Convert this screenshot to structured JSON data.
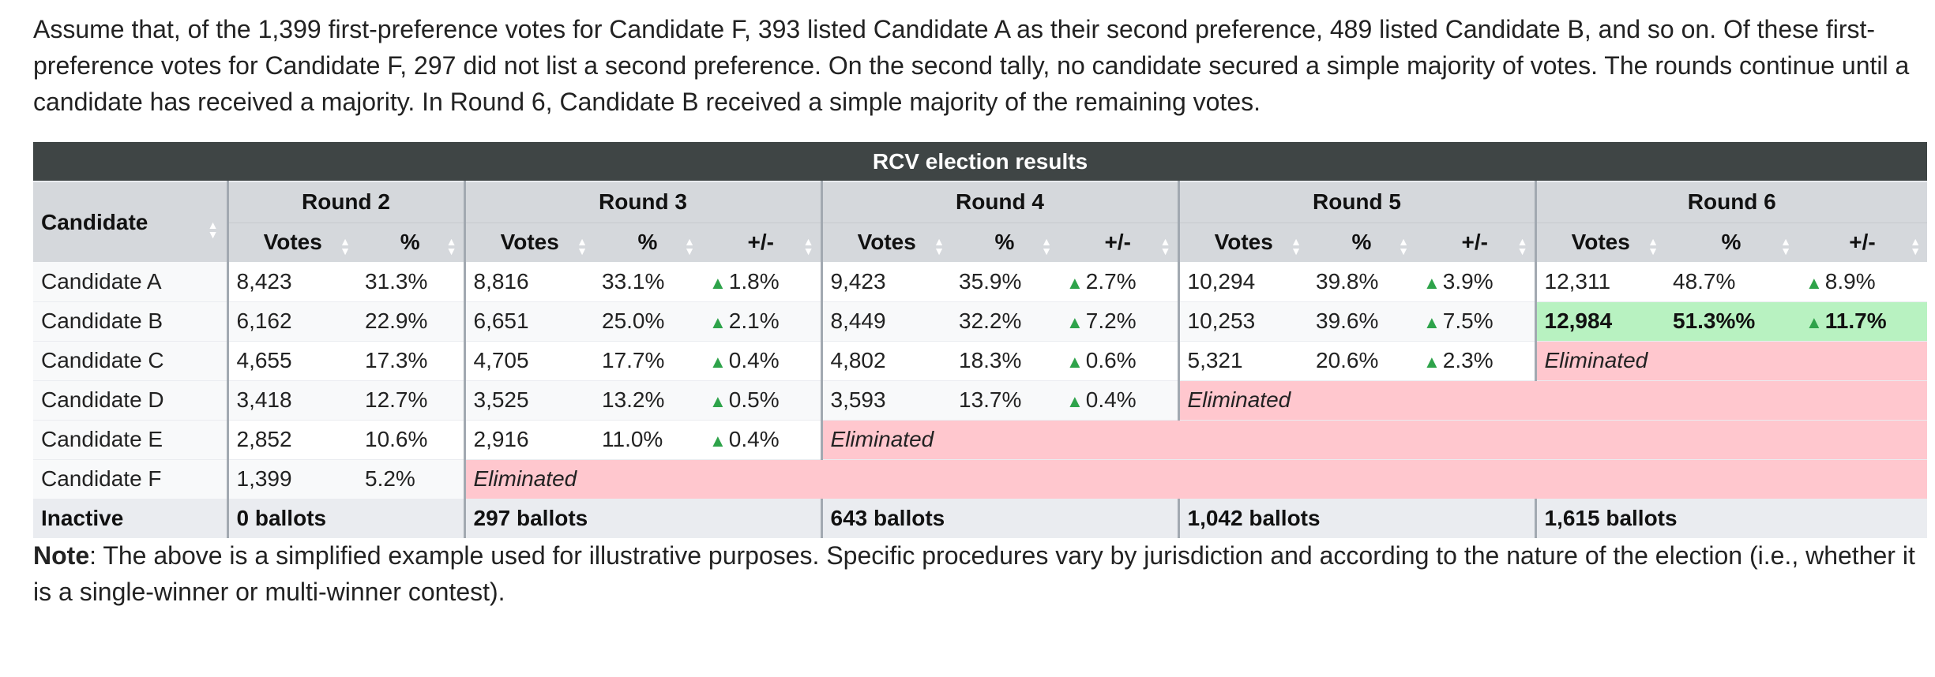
{
  "intro_text": "Assume that, of the 1,399 first-preference votes for Candidate F, 393 listed Candidate A as their second preference, 489 listed Candidate B, and so on. Of these first-preference votes for Candidate F, 297 did not list a second preference. On the second tally, no candidate secured a simple majority of votes. The rounds continue until a candidate has received a majority. In Round 6, Candidate B received a simple majority of the remaining votes.",
  "table": {
    "caption": "RCV election results",
    "candidate_header": "Candidate",
    "rounds": [
      "Round 2",
      "Round 3",
      "Round 4",
      "Round 5",
      "Round 6"
    ],
    "sub_headers": {
      "votes": "Votes",
      "pct": "%",
      "change": "+/-"
    },
    "eliminated_label": "Eliminated",
    "rows": [
      {
        "name": "Candidate A",
        "r2": {
          "votes": "8,423",
          "pct": "31.3%"
        },
        "r3": {
          "votes": "8,816",
          "pct": "33.1%",
          "change": "1.8%"
        },
        "r4": {
          "votes": "9,423",
          "pct": "35.9%",
          "change": "2.7%"
        },
        "r5": {
          "votes": "10,294",
          "pct": "39.8%",
          "change": "3.9%"
        },
        "r6": {
          "votes": "12,311",
          "pct": "48.7%",
          "change": "8.9%"
        }
      },
      {
        "name": "Candidate B",
        "r2": {
          "votes": "6,162",
          "pct": "22.9%"
        },
        "r3": {
          "votes": "6,651",
          "pct": "25.0%",
          "change": "2.1%"
        },
        "r4": {
          "votes": "8,449",
          "pct": "32.2%",
          "change": "7.2%"
        },
        "r5": {
          "votes": "10,253",
          "pct": "39.6%",
          "change": "7.5%"
        },
        "r6": {
          "votes": "12,984",
          "pct": "51.3%%",
          "change": "11.7%"
        }
      },
      {
        "name": "Candidate C",
        "r2": {
          "votes": "4,655",
          "pct": "17.3%"
        },
        "r3": {
          "votes": "4,705",
          "pct": "17.7%",
          "change": "0.4%"
        },
        "r4": {
          "votes": "4,802",
          "pct": "18.3%",
          "change": "0.6%"
        },
        "r5": {
          "votes": "5,321",
          "pct": "20.6%",
          "change": "2.3%"
        }
      },
      {
        "name": "Candidate D",
        "r2": {
          "votes": "3,418",
          "pct": "12.7%"
        },
        "r3": {
          "votes": "3,525",
          "pct": "13.2%",
          "change": "0.5%"
        },
        "r4": {
          "votes": "3,593",
          "pct": "13.7%",
          "change": "0.4%"
        }
      },
      {
        "name": "Candidate E",
        "r2": {
          "votes": "2,852",
          "pct": "10.6%"
        },
        "r3": {
          "votes": "2,916",
          "pct": "11.0%",
          "change": "0.4%"
        }
      },
      {
        "name": "Candidate F",
        "r2": {
          "votes": "1,399",
          "pct": "5.2%"
        }
      }
    ],
    "inactive": {
      "label": "Inactive",
      "values": [
        "0 ballots",
        "297 ballots",
        "643 ballots",
        "1,042 ballots",
        "1,615 ballots"
      ]
    }
  },
  "note": {
    "label": "Note",
    "text": ": The above is a simplified example used for illustrative purposes. Specific procedures vary by jurisdiction and according to the nature of the election (i.e., whether it is a single-winner or multi-winner contest)."
  },
  "colors": {
    "header_dark": "#3f4545",
    "header_light": "#d5d8dc",
    "winner": "#b8f2c1",
    "eliminated": "#ffc7ce",
    "increase_arrow": "#2ea34a"
  }
}
